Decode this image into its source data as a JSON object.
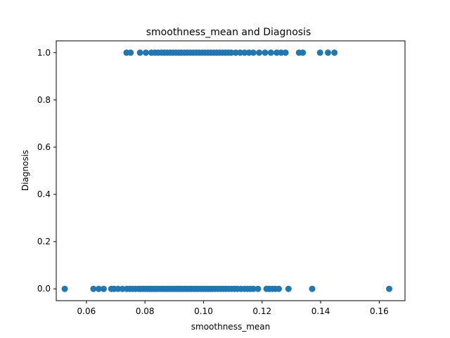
{
  "chart_data": {
    "type": "scatter",
    "title": "smoothness_mean and Diagnosis",
    "xlabel": "smoothness_mean",
    "ylabel": "Diagnosis",
    "xlim": [
      0.0497,
      0.1688
    ],
    "ylim": [
      -0.05,
      1.05
    ],
    "x_ticks": [
      "0.06",
      "0.08",
      "0.10",
      "0.12",
      "0.14",
      "0.16"
    ],
    "y_ticks": [
      "0.0",
      "0.2",
      "0.4",
      "0.6",
      "0.8",
      "1.0"
    ],
    "grid": false,
    "color": "#1f77b4",
    "series": [
      {
        "values": [
          {
            "x": 0.0526,
            "y": 0
          },
          {
            "x": 0.0624,
            "y": 0
          },
          {
            "x": 0.0642,
            "y": 0
          },
          {
            "x": 0.0659,
            "y": 0
          },
          {
            "x": 0.0685,
            "y": 0
          },
          {
            "x": 0.0695,
            "y": 0
          },
          {
            "x": 0.0708,
            "y": 0
          },
          {
            "x": 0.0723,
            "y": 0
          },
          {
            "x": 0.0738,
            "y": 0
          },
          {
            "x": 0.0748,
            "y": 0
          },
          {
            "x": 0.0758,
            "y": 0
          },
          {
            "x": 0.0768,
            "y": 0
          },
          {
            "x": 0.0779,
            "y": 0
          },
          {
            "x": 0.0786,
            "y": 0
          },
          {
            "x": 0.0794,
            "y": 0
          },
          {
            "x": 0.0801,
            "y": 0
          },
          {
            "x": 0.0809,
            "y": 0
          },
          {
            "x": 0.0816,
            "y": 0
          },
          {
            "x": 0.0823,
            "y": 0
          },
          {
            "x": 0.0831,
            "y": 0
          },
          {
            "x": 0.0838,
            "y": 0
          },
          {
            "x": 0.0845,
            "y": 0
          },
          {
            "x": 0.0853,
            "y": 0
          },
          {
            "x": 0.0861,
            "y": 0
          },
          {
            "x": 0.0868,
            "y": 0
          },
          {
            "x": 0.0876,
            "y": 0
          },
          {
            "x": 0.0884,
            "y": 0
          },
          {
            "x": 0.0891,
            "y": 0
          },
          {
            "x": 0.0899,
            "y": 0
          },
          {
            "x": 0.0907,
            "y": 0
          },
          {
            "x": 0.0914,
            "y": 0
          },
          {
            "x": 0.0922,
            "y": 0
          },
          {
            "x": 0.0929,
            "y": 0
          },
          {
            "x": 0.0937,
            "y": 0
          },
          {
            "x": 0.0944,
            "y": 0
          },
          {
            "x": 0.0952,
            "y": 0
          },
          {
            "x": 0.0959,
            "y": 0
          },
          {
            "x": 0.0967,
            "y": 0
          },
          {
            "x": 0.0975,
            "y": 0
          },
          {
            "x": 0.0983,
            "y": 0
          },
          {
            "x": 0.0991,
            "y": 0
          },
          {
            "x": 0.0999,
            "y": 0
          },
          {
            "x": 0.1007,
            "y": 0
          },
          {
            "x": 0.1015,
            "y": 0
          },
          {
            "x": 0.1023,
            "y": 0
          },
          {
            "x": 0.1031,
            "y": 0
          },
          {
            "x": 0.104,
            "y": 0
          },
          {
            "x": 0.1049,
            "y": 0
          },
          {
            "x": 0.1058,
            "y": 0
          },
          {
            "x": 0.1067,
            "y": 0
          },
          {
            "x": 0.1076,
            "y": 0
          },
          {
            "x": 0.1086,
            "y": 0
          },
          {
            "x": 0.1096,
            "y": 0
          },
          {
            "x": 0.1106,
            "y": 0
          },
          {
            "x": 0.1116,
            "y": 0
          },
          {
            "x": 0.1128,
            "y": 0
          },
          {
            "x": 0.114,
            "y": 0
          },
          {
            "x": 0.115,
            "y": 0
          },
          {
            "x": 0.116,
            "y": 0
          },
          {
            "x": 0.117,
            "y": 0
          },
          {
            "x": 0.1186,
            "y": 0
          },
          {
            "x": 0.1215,
            "y": 0
          },
          {
            "x": 0.1225,
            "y": 0
          },
          {
            "x": 0.1235,
            "y": 0
          },
          {
            "x": 0.1245,
            "y": 0
          },
          {
            "x": 0.1257,
            "y": 0
          },
          {
            "x": 0.129,
            "y": 0
          },
          {
            "x": 0.1371,
            "y": 0
          },
          {
            "x": 0.1634,
            "y": 0
          },
          {
            "x": 0.0737,
            "y": 1
          },
          {
            "x": 0.0751,
            "y": 1
          },
          {
            "x": 0.0783,
            "y": 1
          },
          {
            "x": 0.0803,
            "y": 1
          },
          {
            "x": 0.0822,
            "y": 1
          },
          {
            "x": 0.0834,
            "y": 1
          },
          {
            "x": 0.0845,
            "y": 1
          },
          {
            "x": 0.0856,
            "y": 1
          },
          {
            "x": 0.0866,
            "y": 1
          },
          {
            "x": 0.0876,
            "y": 1
          },
          {
            "x": 0.0886,
            "y": 1
          },
          {
            "x": 0.0896,
            "y": 1
          },
          {
            "x": 0.0906,
            "y": 1
          },
          {
            "x": 0.0916,
            "y": 1
          },
          {
            "x": 0.0925,
            "y": 1
          },
          {
            "x": 0.0935,
            "y": 1
          },
          {
            "x": 0.0945,
            "y": 1
          },
          {
            "x": 0.0955,
            "y": 1
          },
          {
            "x": 0.0965,
            "y": 1
          },
          {
            "x": 0.0975,
            "y": 1
          },
          {
            "x": 0.0985,
            "y": 1
          },
          {
            "x": 0.0995,
            "y": 1
          },
          {
            "x": 0.1005,
            "y": 1
          },
          {
            "x": 0.1015,
            "y": 1
          },
          {
            "x": 0.1025,
            "y": 1
          },
          {
            "x": 0.1035,
            "y": 1
          },
          {
            "x": 0.1045,
            "y": 1
          },
          {
            "x": 0.1055,
            "y": 1
          },
          {
            "x": 0.1065,
            "y": 1
          },
          {
            "x": 0.1075,
            "y": 1
          },
          {
            "x": 0.1085,
            "y": 1
          },
          {
            "x": 0.1095,
            "y": 1
          },
          {
            "x": 0.111,
            "y": 1
          },
          {
            "x": 0.1125,
            "y": 1
          },
          {
            "x": 0.114,
            "y": 1
          },
          {
            "x": 0.1155,
            "y": 1
          },
          {
            "x": 0.117,
            "y": 1
          },
          {
            "x": 0.119,
            "y": 1
          },
          {
            "x": 0.121,
            "y": 1
          },
          {
            "x": 0.123,
            "y": 1
          },
          {
            "x": 0.125,
            "y": 1
          },
          {
            "x": 0.1265,
            "y": 1
          },
          {
            "x": 0.128,
            "y": 1
          },
          {
            "x": 0.1326,
            "y": 1
          },
          {
            "x": 0.1339,
            "y": 1
          },
          {
            "x": 0.1398,
            "y": 1
          },
          {
            "x": 0.1425,
            "y": 1
          },
          {
            "x": 0.1447,
            "y": 1
          }
        ]
      }
    ]
  }
}
